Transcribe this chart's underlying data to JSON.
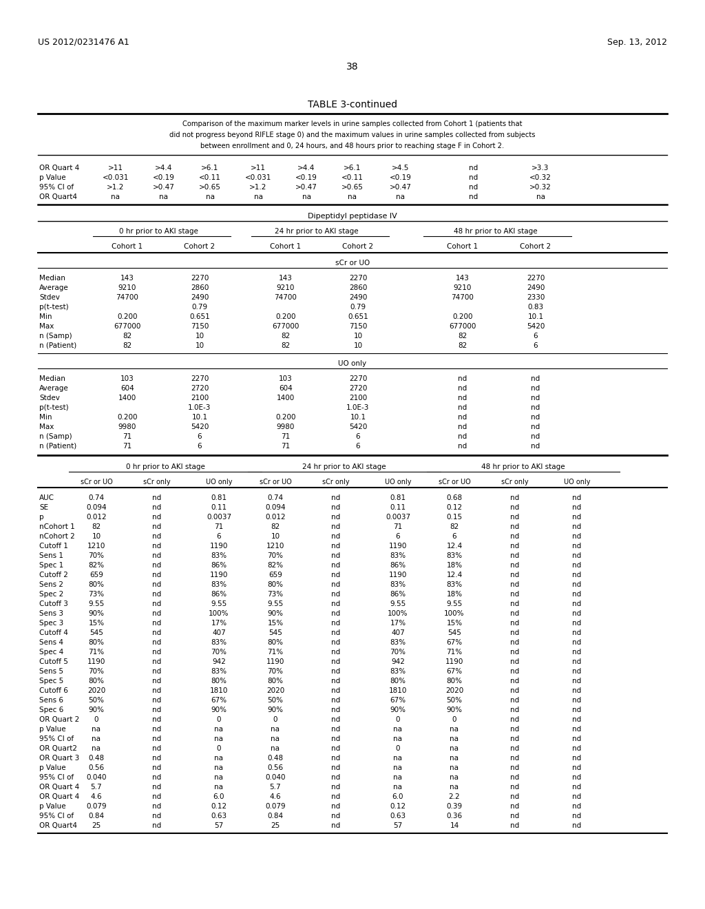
{
  "header_left": "US 2012/0231476 A1",
  "header_right": "Sep. 13, 2012",
  "page_number": "38",
  "table_title": "TABLE 3-continued",
  "caption_lines": [
    "Comparison of the maximum marker levels in urine samples collected from Cohort 1 (patients that",
    "did not progress beyond RIFLE stage 0) and the maximum values in urine samples collected from subjects",
    "between enrollment and 0, 24 hours, and 48 hours prior to reaching stage F in Cohort 2."
  ],
  "section_title": "Dipeptidyl peptidase IV",
  "col_groups": [
    "0 hr prior to AKI stage",
    "24 hr prior to AKI stage",
    "48 hr prior to AKI stage"
  ],
  "top_rows": [
    [
      "OR Quart 4",
      ">11",
      ">4.4",
      ">6.1",
      ">11",
      ">4.4",
      ">6.1",
      ">4.5",
      "nd",
      ">3.3"
    ],
    [
      "p Value",
      "<0.031",
      "<0.19",
      "<0.11",
      "<0.031",
      "<0.19",
      "<0.11",
      "<0.19",
      "nd",
      "<0.32"
    ],
    [
      "95% CI of",
      ">1.2",
      ">0.47",
      ">0.65",
      ">1.2",
      ">0.47",
      ">0.65",
      ">0.47",
      "nd",
      ">0.32"
    ],
    [
      "OR Quart4",
      "na",
      "na",
      "na",
      "na",
      "na",
      "na",
      "na",
      "nd",
      "na"
    ]
  ],
  "scr_uo_rows": [
    [
      "Median",
      "143",
      "2270",
      "143",
      "2270",
      "143",
      "2270"
    ],
    [
      "Average",
      "9210",
      "2860",
      "9210",
      "2860",
      "9210",
      "2490"
    ],
    [
      "Stdev",
      "74700",
      "2490",
      "74700",
      "2490",
      "74700",
      "2330"
    ],
    [
      "p(t-test)",
      "",
      "0.79",
      "",
      "0.79",
      "",
      "0.83"
    ],
    [
      "Min",
      "0.200",
      "0.651",
      "0.200",
      "0.651",
      "0.200",
      "10.1"
    ],
    [
      "Max",
      "677000",
      "7150",
      "677000",
      "7150",
      "677000",
      "5420"
    ],
    [
      "n (Samp)",
      "82",
      "10",
      "82",
      "10",
      "82",
      "6"
    ],
    [
      "n (Patient)",
      "82",
      "10",
      "82",
      "10",
      "82",
      "6"
    ]
  ],
  "uo_only_rows": [
    [
      "Median",
      "103",
      "2270",
      "103",
      "2270",
      "nd",
      "nd"
    ],
    [
      "Average",
      "604",
      "2720",
      "604",
      "2720",
      "nd",
      "nd"
    ],
    [
      "Stdev",
      "1400",
      "2100",
      "1400",
      "2100",
      "nd",
      "nd"
    ],
    [
      "p(t-test)",
      "",
      "1.0E-3",
      "",
      "1.0E-3",
      "nd",
      "nd"
    ],
    [
      "Min",
      "0.200",
      "10.1",
      "0.200",
      "10.1",
      "nd",
      "nd"
    ],
    [
      "Max",
      "9980",
      "5420",
      "9980",
      "5420",
      "nd",
      "nd"
    ],
    [
      "n (Samp)",
      "71",
      "6",
      "71",
      "6",
      "nd",
      "nd"
    ],
    [
      "n (Patient)",
      "71",
      "6",
      "71",
      "6",
      "nd",
      "nd"
    ]
  ],
  "bottom_col_headers": [
    "sCr or UO",
    "sCr only",
    "UO only",
    "sCr or UO",
    "sCr only",
    "UO only",
    "sCr or UO",
    "sCr only",
    "UO only"
  ],
  "bottom_rows": [
    [
      "AUC",
      "0.74",
      "nd",
      "0.81",
      "0.74",
      "nd",
      "0.81",
      "0.68",
      "nd",
      "nd"
    ],
    [
      "SE",
      "0.094",
      "nd",
      "0.11",
      "0.094",
      "nd",
      "0.11",
      "0.12",
      "nd",
      "nd"
    ],
    [
      "p",
      "0.012",
      "nd",
      "0.0037",
      "0.012",
      "nd",
      "0.0037",
      "0.15",
      "nd",
      "nd"
    ],
    [
      "nCohort 1",
      "82",
      "nd",
      "71",
      "82",
      "nd",
      "71",
      "82",
      "nd",
      "nd"
    ],
    [
      "nCohort 2",
      "10",
      "nd",
      "6",
      "10",
      "nd",
      "6",
      "6",
      "nd",
      "nd"
    ],
    [
      "Cutoff 1",
      "1210",
      "nd",
      "1190",
      "1210",
      "nd",
      "1190",
      "12.4",
      "nd",
      "nd"
    ],
    [
      "Sens 1",
      "70%",
      "nd",
      "83%",
      "70%",
      "nd",
      "83%",
      "83%",
      "nd",
      "nd"
    ],
    [
      "Spec 1",
      "82%",
      "nd",
      "86%",
      "82%",
      "nd",
      "86%",
      "18%",
      "nd",
      "nd"
    ],
    [
      "Cutoff 2",
      "659",
      "nd",
      "1190",
      "659",
      "nd",
      "1190",
      "12.4",
      "nd",
      "nd"
    ],
    [
      "Sens 2",
      "80%",
      "nd",
      "83%",
      "80%",
      "nd",
      "83%",
      "83%",
      "nd",
      "nd"
    ],
    [
      "Spec 2",
      "73%",
      "nd",
      "86%",
      "73%",
      "nd",
      "86%",
      "18%",
      "nd",
      "nd"
    ],
    [
      "Cutoff 3",
      "9.55",
      "nd",
      "9.55",
      "9.55",
      "nd",
      "9.55",
      "9.55",
      "nd",
      "nd"
    ],
    [
      "Sens 3",
      "90%",
      "nd",
      "100%",
      "90%",
      "nd",
      "100%",
      "100%",
      "nd",
      "nd"
    ],
    [
      "Spec 3",
      "15%",
      "nd",
      "17%",
      "15%",
      "nd",
      "17%",
      "15%",
      "nd",
      "nd"
    ],
    [
      "Cutoff 4",
      "545",
      "nd",
      "407",
      "545",
      "nd",
      "407",
      "545",
      "nd",
      "nd"
    ],
    [
      "Sens 4",
      "80%",
      "nd",
      "83%",
      "80%",
      "nd",
      "83%",
      "67%",
      "nd",
      "nd"
    ],
    [
      "Spec 4",
      "71%",
      "nd",
      "70%",
      "71%",
      "nd",
      "70%",
      "71%",
      "nd",
      "nd"
    ],
    [
      "Cutoff 5",
      "1190",
      "nd",
      "942",
      "1190",
      "nd",
      "942",
      "1190",
      "nd",
      "nd"
    ],
    [
      "Sens 5",
      "70%",
      "nd",
      "83%",
      "70%",
      "nd",
      "83%",
      "67%",
      "nd",
      "nd"
    ],
    [
      "Spec 5",
      "80%",
      "nd",
      "80%",
      "80%",
      "nd",
      "80%",
      "80%",
      "nd",
      "nd"
    ],
    [
      "Cutoff 6",
      "2020",
      "nd",
      "1810",
      "2020",
      "nd",
      "1810",
      "2020",
      "nd",
      "nd"
    ],
    [
      "Sens 6",
      "50%",
      "nd",
      "67%",
      "50%",
      "nd",
      "67%",
      "50%",
      "nd",
      "nd"
    ],
    [
      "Spec 6",
      "90%",
      "nd",
      "90%",
      "90%",
      "nd",
      "90%",
      "90%",
      "nd",
      "nd"
    ],
    [
      "OR Quart 2",
      "0",
      "nd",
      "0",
      "0",
      "nd",
      "0",
      "0",
      "nd",
      "nd"
    ],
    [
      "p Value",
      "na",
      "nd",
      "na",
      "na",
      "nd",
      "na",
      "na",
      "nd",
      "nd"
    ],
    [
      "95% CI of",
      "na",
      "nd",
      "na",
      "na",
      "nd",
      "na",
      "na",
      "nd",
      "nd"
    ],
    [
      "OR Quart2",
      "na",
      "nd",
      "0",
      "na",
      "nd",
      "0",
      "na",
      "nd",
      "nd"
    ],
    [
      "OR Quart 3",
      "0.48",
      "nd",
      "na",
      "0.48",
      "nd",
      "na",
      "na",
      "nd",
      "nd"
    ],
    [
      "p Value",
      "0.56",
      "nd",
      "na",
      "0.56",
      "nd",
      "na",
      "na",
      "nd",
      "nd"
    ],
    [
      "95% CI of",
      "0.040",
      "nd",
      "na",
      "0.040",
      "nd",
      "na",
      "na",
      "nd",
      "nd"
    ],
    [
      "OR Quart 4",
      "5.7",
      "nd",
      "na",
      "5.7",
      "nd",
      "na",
      "na",
      "nd",
      "nd"
    ],
    [
      "OR Quart 4",
      "4.6",
      "nd",
      "6.0",
      "4.6",
      "nd",
      "6.0",
      "2.2",
      "nd",
      "nd"
    ],
    [
      "p Value",
      "0.079",
      "nd",
      "0.12",
      "0.079",
      "nd",
      "0.12",
      "0.39",
      "nd",
      "nd"
    ],
    [
      "95% CI of",
      "0.84",
      "nd",
      "0.63",
      "0.84",
      "nd",
      "0.63",
      "0.36",
      "nd",
      "nd"
    ],
    [
      "OR Quart4",
      "25",
      "nd",
      "57",
      "25",
      "nd",
      "57",
      "14",
      "nd",
      "nd"
    ]
  ]
}
